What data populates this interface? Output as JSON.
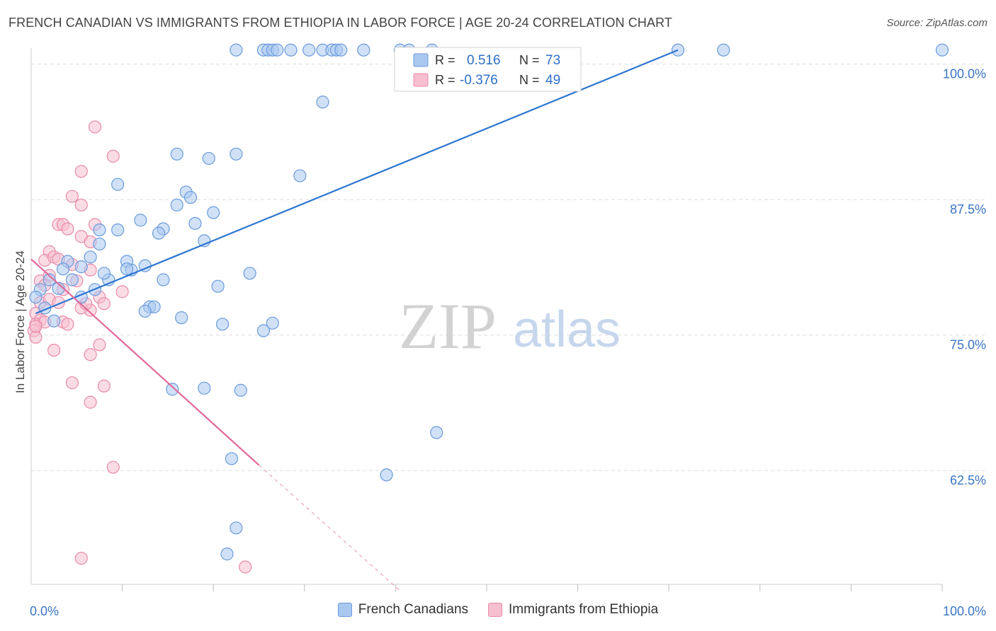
{
  "title": "FRENCH CANADIAN VS IMMIGRANTS FROM ETHIOPIA IN LABOR FORCE | AGE 20-24 CORRELATION CHART",
  "source": "Source: ZipAtlas.com",
  "watermark": {
    "zip": "ZIP",
    "atlas": "atlas"
  },
  "colors": {
    "blue_fill": "#a9c8f0",
    "blue_stroke": "#6b9bdc",
    "blue_line": "#2e75d0",
    "pink_fill": "#f7bfd0",
    "pink_stroke": "#e98aa8",
    "pink_line": "#e0689a",
    "axis_label": "#3a75c4",
    "grid": "#dddddd"
  },
  "legend_top": {
    "rows": [
      {
        "r_label": "R =",
        "r_value": "0.516",
        "n_label": "N =",
        "n_value": "73",
        "series": "blue"
      },
      {
        "r_label": "R =",
        "r_value": "-0.376",
        "n_label": "N =",
        "n_value": "49",
        "series": "pink"
      }
    ]
  },
  "legend_bottom": [
    "French Canadians",
    "Immigrants from Ethiopia"
  ],
  "chart_data": {
    "type": "scatter",
    "title": "FRENCH CANADIAN VS IMMIGRANTS FROM ETHIOPIA IN LABOR FORCE | AGE 20-24 CORRELATION CHART",
    "xlabel": "",
    "ylabel": "In Labor Force | Age 20-24",
    "xlim": [
      0,
      100
    ],
    "ylim": [
      52,
      102
    ],
    "x_tick_labels": [
      {
        "value": 0,
        "label": "0.0%"
      },
      {
        "value": 100,
        "label": "100.0%"
      }
    ],
    "y_ticks": [
      {
        "value": 62.5,
        "label": "62.5%"
      },
      {
        "value": 75.0,
        "label": "75.0%"
      },
      {
        "value": 87.5,
        "label": "87.5%"
      },
      {
        "value": 100.0,
        "label": "100.0%"
      }
    ],
    "x_minor_ticks": [
      10,
      20,
      30,
      40,
      50,
      60,
      70,
      80,
      90,
      100
    ],
    "legend_position": "top-center",
    "series": [
      {
        "name": "French Canadians",
        "color": "blue",
        "trend": {
          "x": [
            0.5,
            71.0
          ],
          "y": [
            77.0,
            101.3
          ]
        },
        "points": [
          [
            22.5,
            101.3
          ],
          [
            25.5,
            101.3
          ],
          [
            26.0,
            101.3
          ],
          [
            26.5,
            101.3
          ],
          [
            27.0,
            101.3
          ],
          [
            28.5,
            101.3
          ],
          [
            30.5,
            101.3
          ],
          [
            32.0,
            101.3
          ],
          [
            33.0,
            101.3
          ],
          [
            33.5,
            101.3
          ],
          [
            34.0,
            101.3
          ],
          [
            36.5,
            101.3
          ],
          [
            40.5,
            101.3
          ],
          [
            41.5,
            101.3
          ],
          [
            44.0,
            101.3
          ],
          [
            71.0,
            101.3
          ],
          [
            76.0,
            101.3
          ],
          [
            100.0,
            101.3
          ],
          [
            32.0,
            96.5
          ],
          [
            16.0,
            91.7
          ],
          [
            19.5,
            91.3
          ],
          [
            22.5,
            91.7
          ],
          [
            29.5,
            89.7
          ],
          [
            9.5,
            88.9
          ],
          [
            17.0,
            88.2
          ],
          [
            17.5,
            87.7
          ],
          [
            16.0,
            87.0
          ],
          [
            20.0,
            86.3
          ],
          [
            12.0,
            85.6
          ],
          [
            18.0,
            85.3
          ],
          [
            14.5,
            84.8
          ],
          [
            9.5,
            84.7
          ],
          [
            7.5,
            84.7
          ],
          [
            14.0,
            84.4
          ],
          [
            19.0,
            83.7
          ],
          [
            7.5,
            83.4
          ],
          [
            6.5,
            82.2
          ],
          [
            10.5,
            81.8
          ],
          [
            12.5,
            81.4
          ],
          [
            4.0,
            81.8
          ],
          [
            3.5,
            81.1
          ],
          [
            5.5,
            81.3
          ],
          [
            4.5,
            80.1
          ],
          [
            8.5,
            80.1
          ],
          [
            14.5,
            80.1
          ],
          [
            11.0,
            81.0
          ],
          [
            3.0,
            79.3
          ],
          [
            7.0,
            79.2
          ],
          [
            2.0,
            80.1
          ],
          [
            1.0,
            79.2
          ],
          [
            0.5,
            78.5
          ],
          [
            1.5,
            77.5
          ],
          [
            5.5,
            78.5
          ],
          [
            13.0,
            77.6
          ],
          [
            16.5,
            76.6
          ],
          [
            13.5,
            77.6
          ],
          [
            12.5,
            77.2
          ],
          [
            10.5,
            81.1
          ],
          [
            8.0,
            80.7
          ],
          [
            20.5,
            79.5
          ],
          [
            24.0,
            80.7
          ],
          [
            25.5,
            75.4
          ],
          [
            26.5,
            76.1
          ],
          [
            21.0,
            76.0
          ],
          [
            15.5,
            70.0
          ],
          [
            19.0,
            70.1
          ],
          [
            23.0,
            69.9
          ],
          [
            44.5,
            66.0
          ],
          [
            22.0,
            63.6
          ],
          [
            39.0,
            62.1
          ],
          [
            22.5,
            57.2
          ],
          [
            21.5,
            54.8
          ],
          [
            2.5,
            76.3
          ]
        ]
      },
      {
        "name": "Immigrants from Ethiopia",
        "color": "pink",
        "trend": {
          "x": [
            0.0,
            25.0
          ],
          "y": [
            82.0,
            63.0
          ]
        },
        "trend_dashed": {
          "x": [
            25.0,
            40.5
          ],
          "y": [
            63.0,
            51.4
          ]
        },
        "points": [
          [
            7.0,
            94.2
          ],
          [
            9.0,
            91.5
          ],
          [
            5.5,
            90.1
          ],
          [
            4.5,
            87.8
          ],
          [
            5.5,
            87.0
          ],
          [
            3.0,
            85.2
          ],
          [
            3.5,
            85.2
          ],
          [
            4.0,
            84.8
          ],
          [
            7.0,
            85.2
          ],
          [
            5.5,
            84.1
          ],
          [
            6.5,
            83.6
          ],
          [
            2.0,
            82.7
          ],
          [
            1.5,
            81.9
          ],
          [
            2.5,
            82.2
          ],
          [
            3.0,
            82.0
          ],
          [
            4.5,
            81.5
          ],
          [
            6.5,
            81.0
          ],
          [
            1.0,
            80.0
          ],
          [
            2.0,
            80.5
          ],
          [
            5.0,
            80.0
          ],
          [
            1.5,
            79.6
          ],
          [
            3.5,
            79.2
          ],
          [
            10.0,
            79.0
          ],
          [
            7.5,
            78.5
          ],
          [
            8.0,
            77.9
          ],
          [
            6.5,
            77.3
          ],
          [
            1.0,
            78.0
          ],
          [
            2.0,
            78.3
          ],
          [
            3.0,
            78.0
          ],
          [
            0.5,
            77.0
          ],
          [
            1.0,
            76.4
          ],
          [
            0.5,
            76.0
          ],
          [
            1.5,
            76.2
          ],
          [
            3.5,
            76.2
          ],
          [
            5.5,
            77.5
          ],
          [
            4.0,
            76.0
          ],
          [
            0.3,
            75.4
          ],
          [
            0.5,
            74.8
          ],
          [
            7.5,
            74.1
          ],
          [
            2.5,
            73.6
          ],
          [
            6.5,
            73.2
          ],
          [
            4.5,
            70.6
          ],
          [
            8.0,
            70.3
          ],
          [
            6.5,
            68.8
          ],
          [
            9.0,
            62.8
          ],
          [
            5.5,
            54.4
          ],
          [
            23.5,
            53.6
          ],
          [
            0.5,
            75.8
          ],
          [
            6.0,
            77.9
          ]
        ]
      }
    ]
  }
}
